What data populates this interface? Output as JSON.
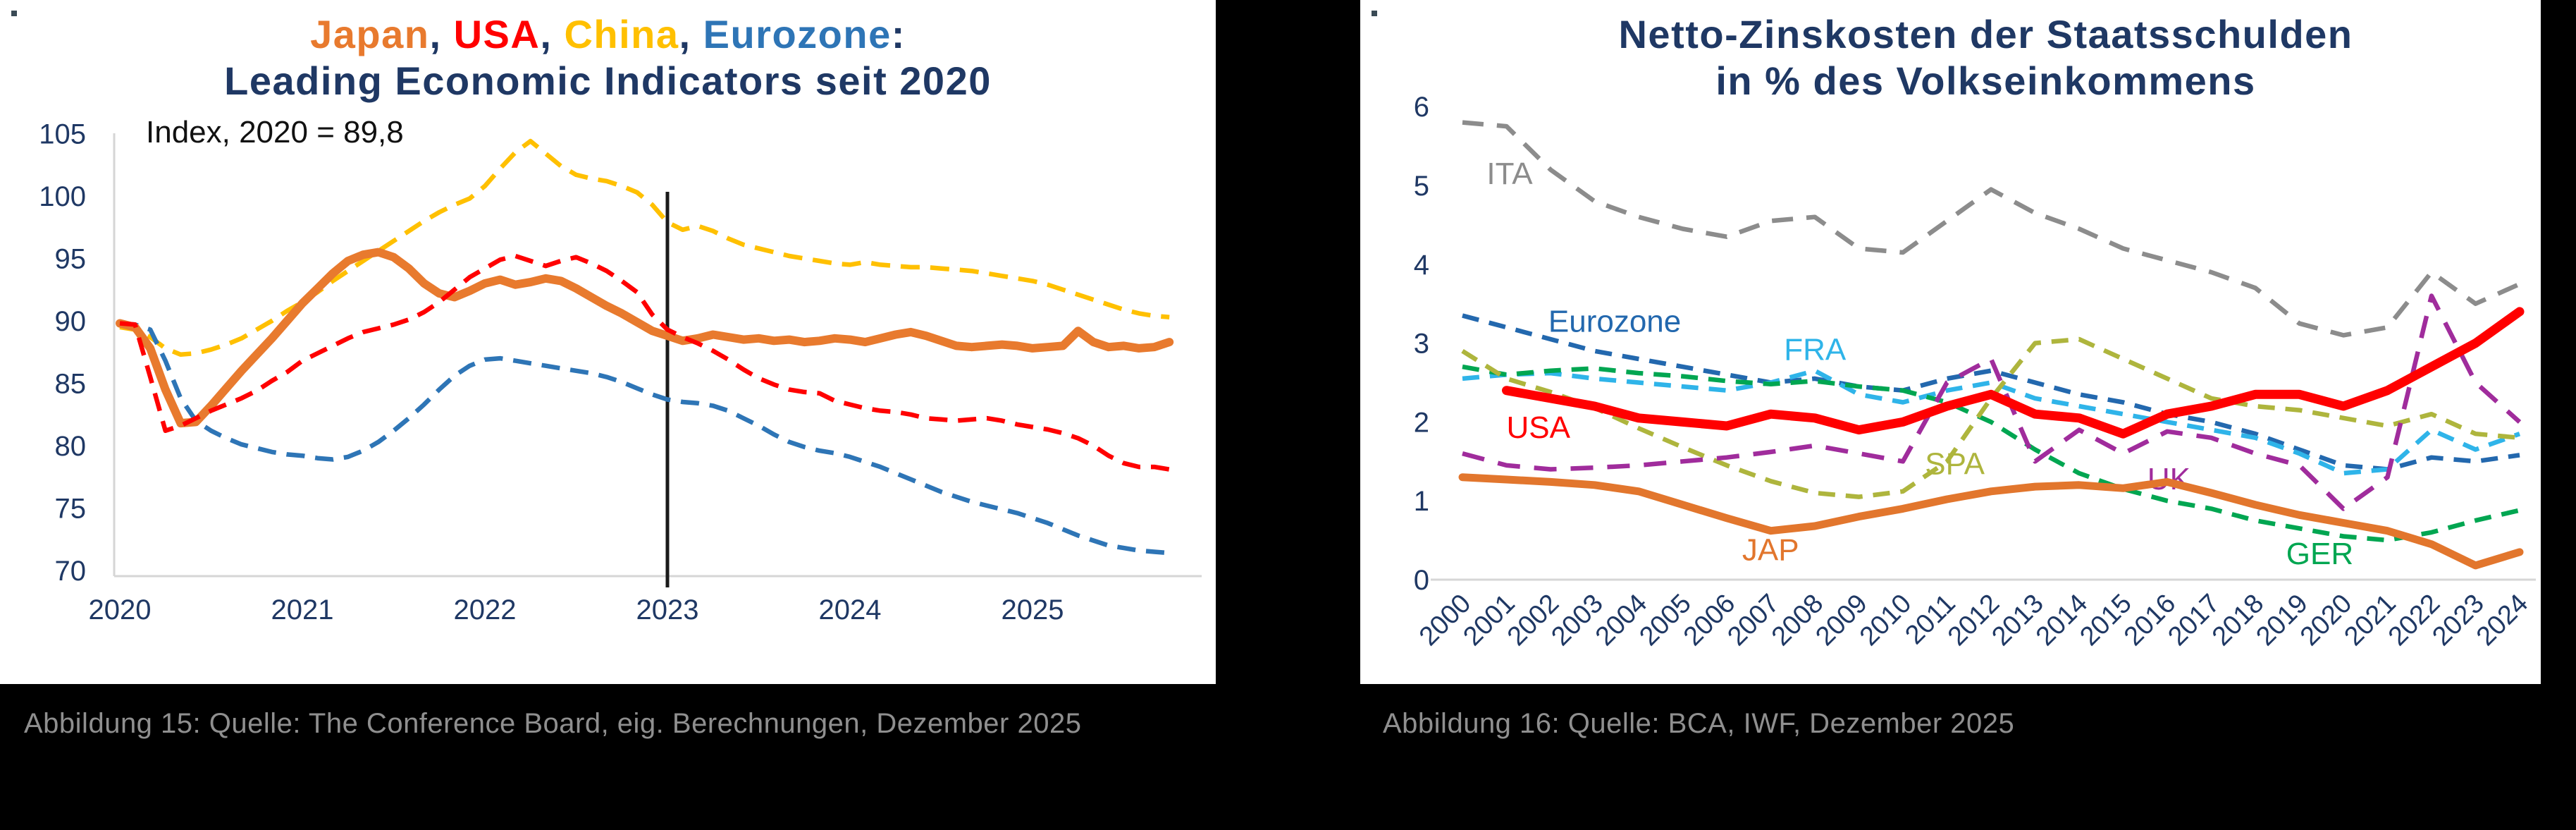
{
  "captions": {
    "left": "Abbildung 15: Quelle: The Conference Board, eig. Berechnungen, Dezember 2025",
    "right": "Abbildung 16: Quelle: BCA, IWF, Dezember 2025"
  },
  "left_chart": {
    "title_segments": [
      {
        "text": "Japan",
        "color": "#E87A2E"
      },
      {
        "text": ", ",
        "color": "#1F3864"
      },
      {
        "text": "USA",
        "color": "#FF0000"
      },
      {
        "text": ", ",
        "color": "#1F3864"
      },
      {
        "text": "China",
        "color": "#FFC000"
      },
      {
        "text": ", ",
        "color": "#1F3864"
      },
      {
        "text": "Eurozone",
        "color": "#2E75B6"
      },
      {
        "text": ":",
        "color": "#1F3864"
      }
    ],
    "subtitle": "Leading Economic Indicators seit 2020"
  },
  "right_chart": {
    "title_line1": "Netto-Zinskosten der Staatsschulden",
    "title_line2": "in % des Volkseinkommens"
  },
  "chart_data": [
    {
      "id": "lei",
      "type": "line",
      "title": "Japan, USA, China, Eurozone: Leading Economic Indicators seit 2020",
      "annotation": "Index, 2020 = 89,8",
      "x_start": 2020,
      "x_step": 0.0833333,
      "x_ticks": [
        2020,
        2021,
        2022,
        2023,
        2024,
        2025
      ],
      "ylim": [
        70,
        105
      ],
      "y_ticks": [
        105,
        100,
        95,
        90,
        85,
        80,
        75,
        70
      ],
      "vline_x": 2023,
      "grid": false,
      "legend": "none",
      "series": [
        {
          "name": "China",
          "color": "#FFC000",
          "style": "dashed",
          "width": 6.5,
          "dash": "27 15",
          "values": [
            89.5,
            89.3,
            88.7,
            87.8,
            87.3,
            87.4,
            87.7,
            88.1,
            88.6,
            89.3,
            90.0,
            90.8,
            91.5,
            92.3,
            93.2,
            94.0,
            94.8,
            95.6,
            96.4,
            97.2,
            98.0,
            98.7,
            99.3,
            99.8,
            100.8,
            102.2,
            103.5,
            104.4,
            103.4,
            102.4,
            101.7,
            101.4,
            101.2,
            100.8,
            100.3,
            99.3,
            97.9,
            97.3,
            97.6,
            97.2,
            96.6,
            96.1,
            95.8,
            95.5,
            95.2,
            95.0,
            94.8,
            94.6,
            94.5,
            94.7,
            94.5,
            94.4,
            94.3,
            94.3,
            94.2,
            94.1,
            94.0,
            93.8,
            93.6,
            93.4,
            93.2,
            92.9,
            92.5,
            92.1,
            91.7,
            91.3,
            90.9,
            90.6,
            90.4,
            90.3
          ]
        },
        {
          "name": "Eurozone",
          "color": "#2E75B6",
          "style": "dashed",
          "width": 6.5,
          "dash": "26 15",
          "values": [
            89.8,
            89.7,
            89.3,
            86.8,
            83.8,
            82.0,
            81.2,
            80.6,
            80.1,
            79.8,
            79.5,
            79.3,
            79.2,
            79.0,
            78.9,
            79.1,
            79.6,
            80.3,
            81.2,
            82.2,
            83.3,
            84.5,
            85.6,
            86.4,
            86.9,
            87.0,
            86.8,
            86.6,
            86.4,
            86.2,
            86.0,
            85.8,
            85.5,
            85.1,
            84.6,
            84.1,
            83.7,
            83.5,
            83.4,
            83.2,
            82.8,
            82.2,
            81.6,
            80.9,
            80.3,
            79.9,
            79.6,
            79.4,
            79.1,
            78.7,
            78.3,
            77.8,
            77.3,
            76.8,
            76.3,
            75.9,
            75.5,
            75.2,
            74.9,
            74.6,
            74.2,
            73.8,
            73.3,
            72.8,
            72.4,
            72.0,
            71.8,
            71.6,
            71.5,
            71.4
          ]
        },
        {
          "name": "Japan",
          "color": "#E87A2E",
          "style": "solid",
          "width": 12,
          "values": [
            89.8,
            89.5,
            87.8,
            84.5,
            81.8,
            81.9,
            83.2,
            84.6,
            86.0,
            87.3,
            88.6,
            90.0,
            91.4,
            92.6,
            93.8,
            94.8,
            95.3,
            95.5,
            95.1,
            94.2,
            93.0,
            92.2,
            91.9,
            92.4,
            93.0,
            93.3,
            92.9,
            93.1,
            93.4,
            93.2,
            92.6,
            91.9,
            91.2,
            90.6,
            89.9,
            89.2,
            88.8,
            88.4,
            88.6,
            88.9,
            88.7,
            88.5,
            88.6,
            88.4,
            88.5,
            88.3,
            88.4,
            88.6,
            88.5,
            88.3,
            88.6,
            88.9,
            89.1,
            88.8,
            88.4,
            88.0,
            87.9,
            88.0,
            88.1,
            88.0,
            87.8,
            87.9,
            88.0,
            89.2,
            88.3,
            87.9,
            88.0,
            87.8,
            87.9,
            88.3
          ]
        },
        {
          "name": "USA",
          "color": "#FF0000",
          "style": "dashed",
          "width": 6.5,
          "dash": "26 15",
          "values": [
            89.8,
            89.7,
            85.5,
            81.2,
            81.6,
            82.2,
            82.8,
            83.3,
            83.8,
            84.4,
            85.2,
            85.9,
            86.8,
            87.4,
            88.0,
            88.6,
            89.1,
            89.4,
            89.7,
            90.1,
            90.7,
            91.5,
            92.5,
            93.5,
            94.2,
            94.9,
            95.2,
            94.8,
            94.4,
            94.8,
            95.1,
            94.6,
            94.0,
            93.2,
            92.3,
            90.5,
            89.3,
            88.7,
            88.2,
            87.6,
            86.9,
            86.1,
            85.4,
            84.9,
            84.5,
            84.3,
            84.2,
            83.6,
            83.3,
            83.0,
            82.8,
            82.7,
            82.5,
            82.2,
            82.1,
            82.0,
            82.1,
            82.2,
            82.0,
            81.7,
            81.5,
            81.3,
            81.0,
            80.6,
            80.0,
            79.2,
            78.6,
            78.3,
            78.3,
            78.1
          ]
        }
      ]
    },
    {
      "id": "zinskosten",
      "type": "line",
      "title": "Netto-Zinskosten der Staatsschulden in % des Volkseinkommens",
      "x_start": 2000,
      "x_step": 1,
      "x_ticks": [
        2000,
        2001,
        2002,
        2003,
        2004,
        2005,
        2006,
        2007,
        2008,
        2009,
        2010,
        2011,
        2012,
        2013,
        2014,
        2015,
        2016,
        2017,
        2018,
        2019,
        2020,
        2021,
        2022,
        2023,
        2024
      ],
      "ylim": [
        0,
        6
      ],
      "y_ticks": [
        6,
        5,
        4,
        3,
        2,
        1,
        0
      ],
      "grid": false,
      "legend": "inline-labels",
      "series": [
        {
          "name": "ITA",
          "color": "#8C8C8C",
          "style": "dashed",
          "width": 6.5,
          "dash": "30 19",
          "label_x": 2000.55,
          "label_y": 5.15,
          "values": [
            5.8,
            5.75,
            5.2,
            4.8,
            4.6,
            4.45,
            4.35,
            4.55,
            4.6,
            4.2,
            4.15,
            4.55,
            4.95,
            4.65,
            4.45,
            4.2,
            4.05,
            3.9,
            3.7,
            3.25,
            3.1,
            3.2,
            3.9,
            3.5,
            3.75
          ]
        },
        {
          "name": "Eurozone",
          "color": "#2368AE",
          "style": "dashed",
          "width": 6.5,
          "dash": "24 15",
          "label_x": 2001.95,
          "label_y": 3.28,
          "values": [
            3.35,
            3.2,
            3.05,
            2.9,
            2.8,
            2.7,
            2.6,
            2.5,
            2.55,
            2.45,
            2.4,
            2.55,
            2.65,
            2.5,
            2.35,
            2.25,
            2.1,
            2.0,
            1.85,
            1.65,
            1.45,
            1.4,
            1.55,
            1.5,
            1.58
          ]
        },
        {
          "name": "FRA",
          "color": "#2FB4E9",
          "style": "dashed",
          "width": 6.5,
          "dash": "24 15",
          "label_x": 2007.3,
          "label_y": 2.92,
          "values": [
            2.55,
            2.6,
            2.62,
            2.55,
            2.5,
            2.45,
            2.4,
            2.5,
            2.65,
            2.35,
            2.25,
            2.4,
            2.5,
            2.3,
            2.2,
            2.1,
            2.0,
            1.9,
            1.8,
            1.6,
            1.35,
            1.4,
            1.9,
            1.65,
            1.85
          ]
        },
        {
          "name": "GER",
          "color": "#00A651",
          "style": "dashed",
          "width": 6.5,
          "dash": "24 15",
          "label_x": 2018.7,
          "label_y": 0.33,
          "values": [
            2.7,
            2.6,
            2.65,
            2.68,
            2.62,
            2.58,
            2.52,
            2.48,
            2.52,
            2.45,
            2.4,
            2.25,
            2.0,
            1.65,
            1.35,
            1.15,
            1.0,
            0.9,
            0.75,
            0.65,
            0.55,
            0.5,
            0.6,
            0.75,
            0.88
          ]
        },
        {
          "name": "SPA",
          "color": "#AEB53D",
          "style": "dashed",
          "width": 6.5,
          "dash": "24 15",
          "label_x": 2010.5,
          "label_y": 1.47,
          "values": [
            2.9,
            2.55,
            2.38,
            2.18,
            1.92,
            1.68,
            1.45,
            1.25,
            1.1,
            1.05,
            1.12,
            1.5,
            2.3,
            3.0,
            3.05,
            2.8,
            2.55,
            2.3,
            2.2,
            2.15,
            2.05,
            1.95,
            2.1,
            1.85,
            1.8
          ]
        },
        {
          "name": "UK",
          "color": "#A02C9C",
          "style": "dashed",
          "width": 6.5,
          "dash": "32 20",
          "label_x": 2015.55,
          "label_y": 1.28,
          "values": [
            1.6,
            1.45,
            1.4,
            1.42,
            1.45,
            1.5,
            1.55,
            1.62,
            1.7,
            1.6,
            1.5,
            2.5,
            2.8,
            1.5,
            1.9,
            1.6,
            1.88,
            1.8,
            1.6,
            1.45,
            0.9,
            1.3,
            3.6,
            2.5,
            2.0
          ]
        },
        {
          "name": "JAP",
          "color": "#E2762D",
          "style": "solid",
          "width": 11,
          "label_x": 2006.35,
          "label_y": 0.38,
          "values": [
            1.3,
            1.27,
            1.24,
            1.2,
            1.12,
            0.95,
            0.78,
            0.62,
            0.68,
            0.8,
            0.9,
            1.02,
            1.12,
            1.18,
            1.2,
            1.16,
            1.24,
            1.1,
            0.95,
            0.82,
            0.72,
            0.62,
            0.45,
            0.18,
            0.35
          ]
        },
        {
          "name": "USA",
          "color": "#FF0000",
          "style": "solid",
          "width": 13,
          "x_start": 2001,
          "label_x": 2001.0,
          "label_y": 1.93,
          "values": [
            2.4,
            2.3,
            2.2,
            2.05,
            2.0,
            1.95,
            2.1,
            2.05,
            1.9,
            2.0,
            2.2,
            2.35,
            2.1,
            2.05,
            1.85,
            2.1,
            2.2,
            2.35,
            2.35,
            2.2,
            2.4,
            2.7,
            3.0,
            3.4
          ]
        }
      ]
    }
  ],
  "style": {
    "tick_color": "#1F3864",
    "axis_color": "#D6D6D6",
    "annotation_color": "#111111",
    "vline_color": "#1a1a1a"
  }
}
